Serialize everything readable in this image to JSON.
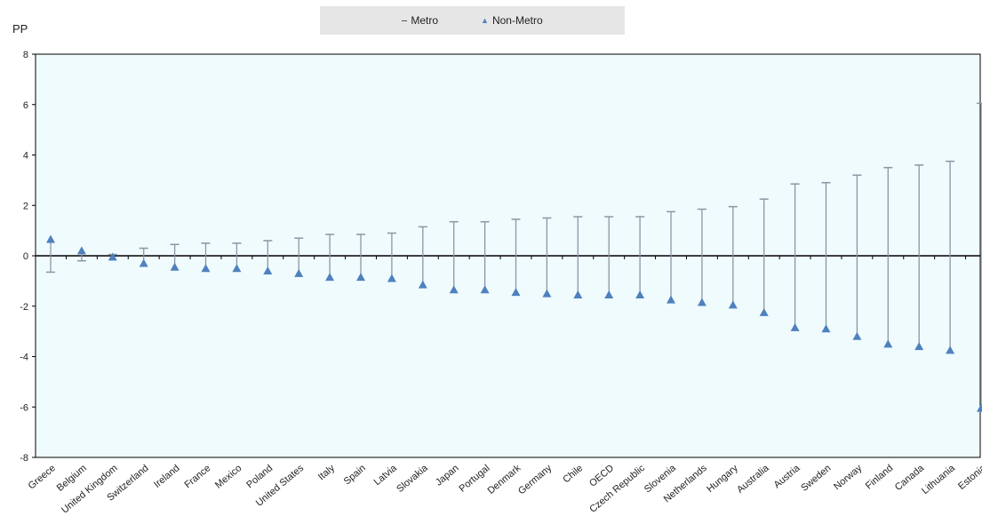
{
  "legend": {
    "metro": "Metro",
    "non_metro": "Non-Metro"
  },
  "colors": {
    "plot_bg": "#f0fbfe",
    "series": "#4e81bd",
    "range_line": "#8a96a3",
    "axis": "#000000"
  },
  "chart_data": {
    "type": "scatter",
    "ylabel": "PP",
    "ylim": [
      -8,
      8
    ],
    "yticks": [
      -8,
      -6,
      -4,
      -2,
      0,
      2,
      4,
      6,
      8
    ],
    "grid": false,
    "legend_position": "top-center",
    "categories": [
      "Greece",
      "Belgium",
      "United Kingdom",
      "Switzerland",
      "Ireland",
      "France",
      "Mexico",
      "Poland",
      "United States",
      "Italy",
      "Spain",
      "Latvia",
      "Slovakia",
      "Japan",
      "Portugal",
      "Denmark",
      "Germany",
      "Chile",
      "OECD",
      "Czech Republic",
      "Slovenia",
      "Netherlands",
      "Hungary",
      "Australia",
      "Austria",
      "Sweden",
      "Norway",
      "Finland",
      "Canada",
      "Lithuania",
      "Estonia"
    ],
    "series": [
      {
        "name": "Metro",
        "values": [
          -0.65,
          -0.2,
          0.05,
          0.3,
          0.45,
          0.5,
          0.5,
          0.6,
          0.7,
          0.85,
          0.85,
          0.9,
          1.15,
          1.35,
          1.35,
          1.45,
          1.5,
          1.55,
          1.55,
          1.55,
          1.75,
          1.85,
          1.95,
          2.25,
          2.85,
          2.9,
          3.2,
          3.5,
          3.6,
          3.75,
          6.05
        ]
      },
      {
        "name": "Non-Metro",
        "values": [
          0.65,
          0.2,
          -0.05,
          -0.3,
          -0.45,
          -0.5,
          -0.5,
          -0.6,
          -0.7,
          -0.85,
          -0.85,
          -0.9,
          -1.15,
          -1.35,
          -1.35,
          -1.45,
          -1.5,
          -1.55,
          -1.55,
          -1.55,
          -1.75,
          -1.85,
          -1.95,
          -2.25,
          -2.85,
          -2.9,
          -3.2,
          -3.5,
          -3.6,
          -3.75,
          -6.05
        ]
      }
    ]
  }
}
